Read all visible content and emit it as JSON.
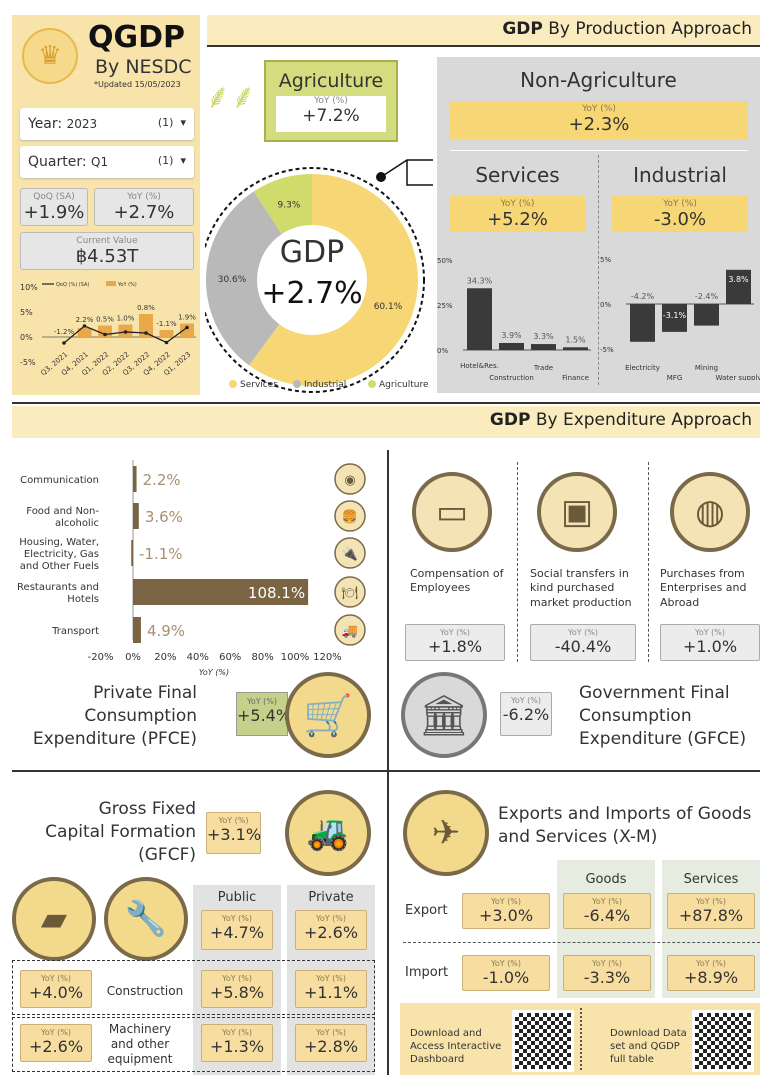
{
  "header": {
    "title": "QGDP",
    "subtitle": "By NESDC",
    "updated": "*Updated  15/05/2023"
  },
  "filters": {
    "year_label": "Year:",
    "year_value": "2023",
    "year_count": "(1)",
    "quarter_label": "Quarter:",
    "quarter_value": "Q1",
    "quarter_count": "(1)"
  },
  "kpis": {
    "qoq_label": "QoQ (SA)",
    "qoq_value": "+1.9%",
    "yoy_label": "YoY (%)",
    "yoy_value": "+2.7%",
    "current_label": "Current Value",
    "current_value": "฿4.53T"
  },
  "trend_chart": {
    "type": "bar+line",
    "legend": [
      "QoQ (%) (SA)",
      "YoY (%)"
    ],
    "categories": [
      "Q3, 2021",
      "Q4, 2021",
      "Q1, 2022",
      "Q2, 2022",
      "Q3, 2022",
      "Q4, 2022",
      "Q1, 2023"
    ],
    "qoq": [
      -1.2,
      2.2,
      0.5,
      1.0,
      0.8,
      -1.1,
      1.9
    ],
    "qoq_labels": [
      "-1.2%",
      "2.2%",
      "0.5%",
      "1.0%",
      "0.8%",
      "-1.1%",
      "1.9%"
    ],
    "yoy": [
      -0.2,
      1.8,
      2.3,
      2.5,
      4.6,
      1.4,
      2.7
    ],
    "yticks": [
      "10%",
      "5%",
      "0%",
      "-5%"
    ],
    "ylim": [
      -5,
      10
    ],
    "colors": {
      "qoq": "#222222",
      "yoy": "#e9a94a"
    }
  },
  "production": {
    "header_bold": "GDP",
    "header_rest": " By Production Approach",
    "agriculture": {
      "title": "Agriculture",
      "yoy_label": "YoY (%)",
      "yoy": "+7.2%"
    },
    "gdp": {
      "label": "GDP",
      "value": "+2.7%"
    },
    "donut": {
      "type": "pie",
      "slices": [
        {
          "name": "Services",
          "value": 60.1,
          "label": "60.1%",
          "color": "#f7d675"
        },
        {
          "name": "Industrial",
          "value": 30.6,
          "label": "30.6%",
          "color": "#b9b9b9"
        },
        {
          "name": "Agriculture",
          "value": 9.3,
          "label": "9.3%",
          "color": "#cfdb6a"
        }
      ]
    },
    "non_agriculture": {
      "title": "Non-Agriculture",
      "yoy_label": "YoY (%)",
      "yoy": "+2.3%"
    },
    "services": {
      "title": "Services",
      "yoy_label": "YoY (%)",
      "yoy": "+5.2%"
    },
    "industrial": {
      "title": "Industrial",
      "yoy_label": "YoY (%)",
      "yoy": "-3.0%"
    }
  },
  "chart_data": [
    {
      "type": "bar",
      "id": "services",
      "categories": [
        "Hotel&Res.",
        "Construction",
        "Trade",
        "Finance"
      ],
      "values": [
        34.3,
        3.9,
        3.3,
        1.5
      ],
      "labels": [
        "34.3%",
        "3.9%",
        "3.3%",
        "1.5%"
      ],
      "yticks": [
        "50%",
        "25%",
        "0%"
      ],
      "ylim": [
        0,
        50
      ]
    },
    {
      "type": "bar",
      "id": "industrial",
      "categories": [
        "Electricity",
        "MFG",
        "Mining",
        "Water supply"
      ],
      "values": [
        -4.2,
        -3.1,
        -2.4,
        3.8
      ],
      "labels": [
        "-4.2%",
        "-3.1%",
        "-2.4%",
        "3.8%"
      ],
      "yticks": [
        "5%",
        "0%",
        "-5%"
      ],
      "ylim": [
        -5,
        5
      ]
    },
    {
      "type": "bar",
      "id": "pfce",
      "orientation": "horizontal",
      "categories": [
        "Communication",
        "Food and Non-alcoholic",
        "Housing, Water, Electricity, Gas and Other Fuels",
        "Restaurants and Hotels",
        "Transport"
      ],
      "values": [
        2.2,
        3.6,
        -1.1,
        108.1,
        4.9
      ],
      "labels": [
        "2.2%",
        "3.6%",
        "-1.1%",
        "108.1%",
        "4.9%"
      ],
      "xticks": [
        "-20%",
        "0%",
        "20%",
        "40%",
        "60%",
        "80%",
        "100%",
        "120%"
      ],
      "xlim": [
        -20,
        120
      ],
      "xlabel": "YoY (%)"
    }
  ],
  "expenditure": {
    "header_bold": "GDP",
    "header_rest": " By Expenditure Approach",
    "pfce": {
      "title": "Private Final Consumption Expenditure (PFCE)",
      "yoy_label": "YoY (%)",
      "yoy": "+5.4%"
    },
    "gov_items": [
      {
        "label": "Compensation of Employees",
        "yoy_label": "YoY (%)",
        "yoy": "+1.8%"
      },
      {
        "label": "Social transfers in kind purchased market production",
        "yoy_label": "YoY (%)",
        "yoy": "-40.4%"
      },
      {
        "label": "Purchases from Enterprises and Abroad",
        "yoy_label": "YoY (%)",
        "yoy": "+1.0%"
      }
    ],
    "gfce": {
      "title": "Government Final Consumption Expenditure (GFCE)",
      "yoy_label": "YoY (%)",
      "yoy": "-6.2%"
    },
    "gfcf": {
      "title": "Gross Fixed Capital Formation (GFCF)",
      "yoy_label": "YoY (%)",
      "yoy": "+3.1%",
      "col_public": "Public",
      "col_private": "Private",
      "public_yoy": "+4.7%",
      "private_yoy": "+2.6%",
      "rows": [
        {
          "label": "Construction",
          "total": "+4.0%",
          "public": "+5.8%",
          "private": "+1.1%"
        },
        {
          "label": "Machinery and other equipment",
          "total": "+2.6%",
          "public": "+1.3%",
          "private": "+2.8%"
        }
      ]
    },
    "xm": {
      "title": "Exports and Imports of Goods and Services (X-M)",
      "col_goods": "Goods",
      "col_services": "Services",
      "rows": [
        {
          "label": "Export",
          "total": "+3.0%",
          "goods": "-6.4%",
          "services": "+87.8%"
        },
        {
          "label": "Import",
          "total": "-1.0%",
          "goods": "-3.3%",
          "services": "+8.9%"
        }
      ],
      "yoy_label": "YoY (%)"
    }
  },
  "downloads": {
    "dashboard": "Download and Access Interactive Dashboard",
    "dataset": "Download Data set and QGDP full table"
  }
}
